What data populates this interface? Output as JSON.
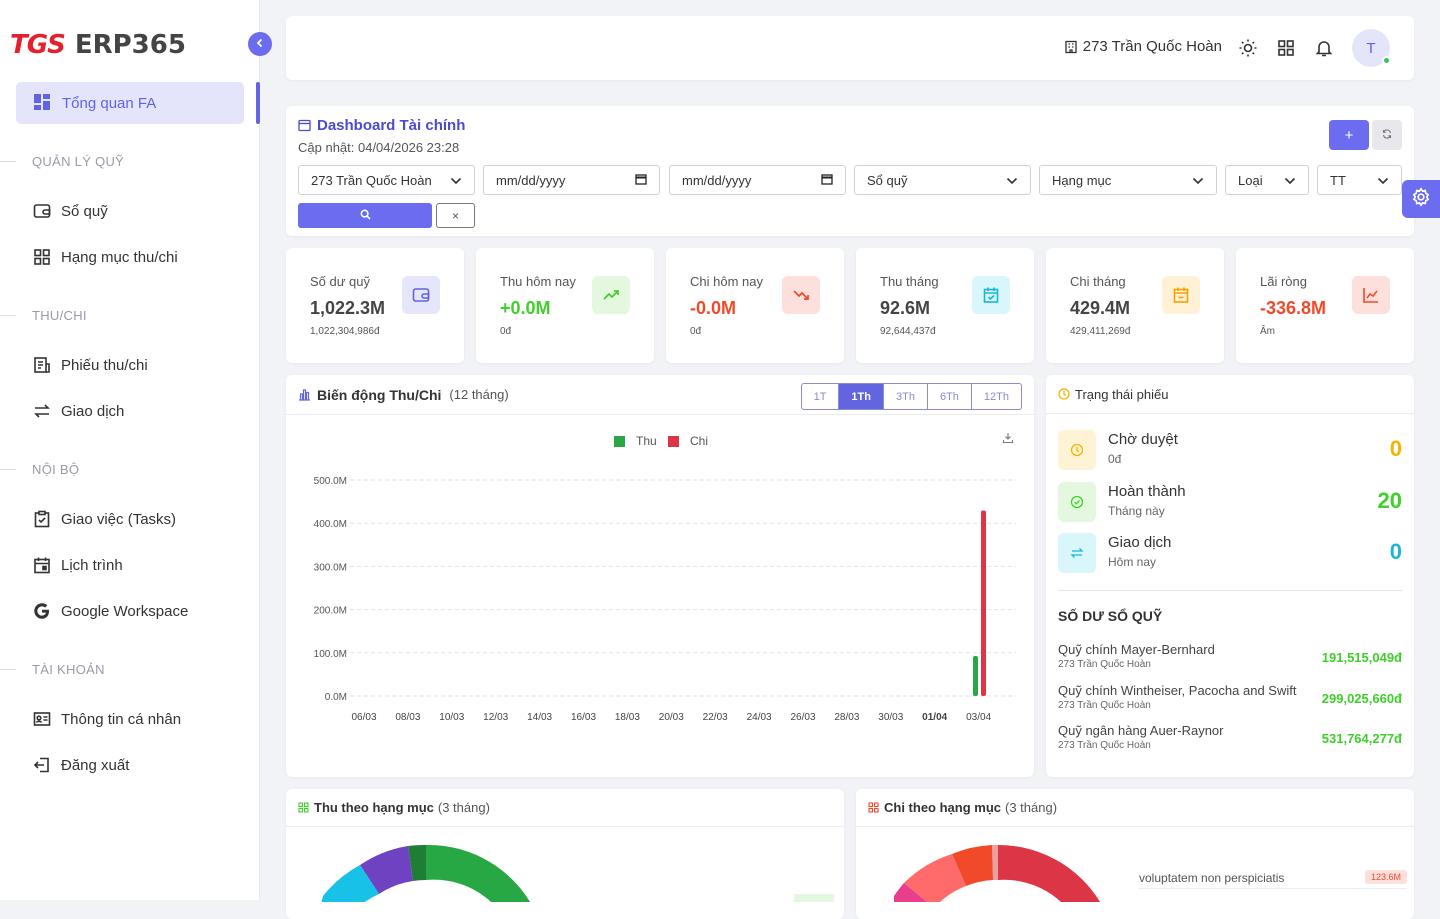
{
  "sidebar": {
    "logo_tgs": "TGS",
    "logo_erp": "ERP365",
    "active_item": "Tổng quan FA",
    "sections": [
      {
        "heading": "QUẢN LÝ QUỸ",
        "items": [
          "Sổ quỹ",
          "Hạng mục thu/chi"
        ]
      },
      {
        "heading": "THU/CHI",
        "items": [
          "Phiếu thu/chi",
          "Giao dịch"
        ]
      },
      {
        "heading": "NỘI BỘ",
        "items": [
          "Giao việc (Tasks)",
          "Lịch trình",
          "Google Workspace"
        ]
      },
      {
        "heading": "TÀI KHOẢN",
        "items": [
          "Thông tin cá nhân",
          "Đăng xuất"
        ]
      }
    ]
  },
  "topbar": {
    "location": "273 Trần Quốc Hoàn",
    "avatar_initial": "T"
  },
  "dashboard": {
    "title": "Dashboard Tài chính",
    "updated": "Cập nhật: 04/04/2026 23:28",
    "filters": {
      "branch": "273 Trần Quốc Hoàn",
      "date_from_placeholder": "mm/dd/yyyy",
      "date_to_placeholder": "mm/dd/yyyy",
      "fund": "Sổ quỹ",
      "category": "Hạng mục",
      "type": "Loại",
      "status": "TT"
    },
    "add_label": "+",
    "clear_label": "×"
  },
  "stats": [
    {
      "label": "Số dư quỹ",
      "value": "1,022.3M",
      "sub": "1,022,304,986đ",
      "color": "#444444",
      "icon": "wallet-icon",
      "icon_bg": "#e6e6fb",
      "icon_color": "#6364e0"
    },
    {
      "label": "Thu hôm nay",
      "value": "+0.0M",
      "sub": "0đ",
      "color": "#40d02a",
      "icon": "trending-up-icon",
      "icon_bg": "#e4f8e0",
      "icon_color": "#40d02a"
    },
    {
      "label": "Chi hôm nay",
      "value": "-0.0M",
      "sub": "0đ",
      "color": "#f04a2a",
      "icon": "trending-down-icon",
      "icon_bg": "#fde0dc",
      "icon_color": "#f04a2a"
    },
    {
      "label": "Thu tháng",
      "value": "92.6M",
      "sub": "92,644,437đ",
      "color": "#444444",
      "icon": "calendar-check-icon",
      "icon_bg": "#d9f6fb",
      "icon_color": "#1cb6d8"
    },
    {
      "label": "Chi tháng",
      "value": "429.4M",
      "sub": "429,411,269đ",
      "color": "#444444",
      "icon": "calendar-minus-icon",
      "icon_bg": "#fff1d6",
      "icon_color": "#f5a300"
    },
    {
      "label": "Lãi ròng",
      "value": "-336.8M",
      "sub": "Âm",
      "color": "#f04a2a",
      "icon": "chart-line-icon",
      "icon_bg": "#fde0dc",
      "icon_color": "#f04a2a"
    }
  ],
  "trend": {
    "title": "Biến động Thu/Chi",
    "period": "(12 tháng)",
    "ranges": [
      "1T",
      "1Th",
      "3Th",
      "6Th",
      "12Th"
    ],
    "active_range": "1Th",
    "legend": [
      "Thu",
      "Chi"
    ]
  },
  "chart_data": {
    "type": "bar",
    "xlabel": "",
    "ylabel": "",
    "ylim": [
      0,
      500
    ],
    "y_unit": "M",
    "y_ticks": [
      "0.0M",
      "100.0M",
      "200.0M",
      "300.0M",
      "400.0M",
      "500.0M"
    ],
    "x_ticks": [
      "06/03",
      "08/03",
      "10/03",
      "12/03",
      "14/03",
      "16/03",
      "18/03",
      "20/03",
      "22/03",
      "24/03",
      "26/03",
      "28/03",
      "30/03",
      "01/04",
      "03/04"
    ],
    "categories": [
      "04/04"
    ],
    "series": [
      {
        "name": "Thu",
        "color": "#28a745",
        "values": [
          92.6
        ]
      },
      {
        "name": "Chi",
        "color": "#dc3545",
        "values": [
          429.4
        ]
      }
    ],
    "legend": "top-center",
    "grid": true
  },
  "status": {
    "title": "Trạng thái phiếu",
    "rows": [
      {
        "title": "Chờ duyệt",
        "sub": "0đ",
        "count": "0",
        "color": "#f5b400",
        "bg": "#fff3d6",
        "icon": "clock-icon"
      },
      {
        "title": "Hoàn thành",
        "sub": "Tháng này",
        "count": "20",
        "color": "#40d02a",
        "bg": "#e4f8e0",
        "icon": "check-circle-icon"
      },
      {
        "title": "Giao dịch",
        "sub": "Hôm nay",
        "count": "0",
        "color": "#1cb6d8",
        "bg": "#d9f6fb",
        "icon": "swap-icon"
      }
    ],
    "balance_title": "SỐ DƯ SỔ QUỸ",
    "funds": [
      {
        "name": "Quỹ chính Mayer-Bernhard",
        "sub": "273 Trần Quốc Hoàn",
        "value": "191,515,049đ"
      },
      {
        "name": "Quỹ chính Wintheiser, Pacocha and Swift",
        "sub": "273 Trần Quốc Hoàn",
        "value": "299,025,660đ"
      },
      {
        "name": "Quỹ ngân hàng Auer-Raynor",
        "sub": "273 Trần Quốc Hoàn",
        "value": "531,764,277đ"
      }
    ]
  },
  "income_by_cat": {
    "title": "Thu theo hạng mục",
    "period": "(3 tháng)"
  },
  "expense_by_cat": {
    "title": "Chi theo hạng mục",
    "period": "(3 tháng)",
    "items": [
      {
        "name": "voluptatem non perspiciatis",
        "value": "123.6M"
      }
    ]
  }
}
